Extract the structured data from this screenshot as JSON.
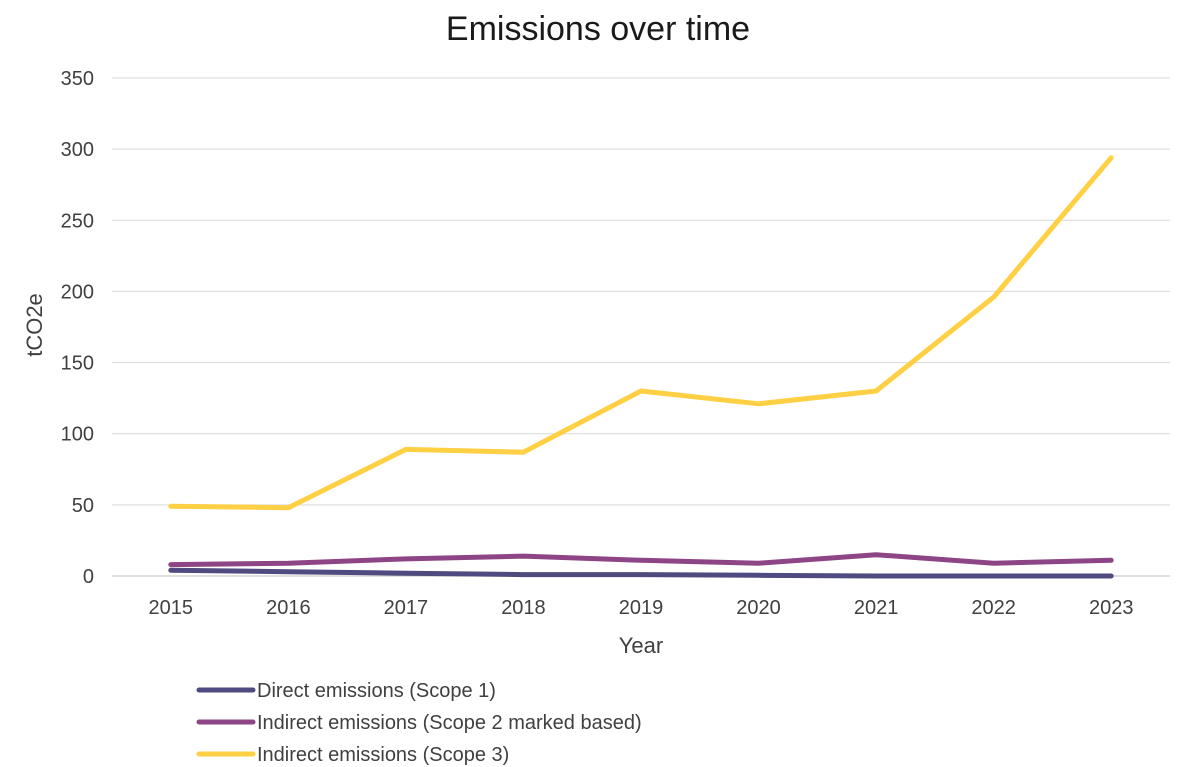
{
  "chart_data": {
    "type": "line",
    "title": "Emissions over time",
    "xlabel": "Year",
    "ylabel": "tCO2e",
    "categories": [
      "2015",
      "2016",
      "2017",
      "2018",
      "2019",
      "2020",
      "2021",
      "2022",
      "2023"
    ],
    "ylim": [
      0,
      350
    ],
    "yticks": [
      0,
      50,
      100,
      150,
      200,
      250,
      300,
      350
    ],
    "grid": true,
    "legend_position": "bottom-left",
    "series": [
      {
        "name": "Direct emissions (Scope 1)",
        "color": "#4f4a7f",
        "values": [
          4,
          3,
          2,
          1,
          1,
          0.5,
          0,
          0,
          0
        ]
      },
      {
        "name": "Indirect emissions (Scope 2 marked based)",
        "color": "#8e4585",
        "values": [
          8,
          9,
          12,
          14,
          11,
          9,
          15,
          9,
          11
        ]
      },
      {
        "name": "Indirect emissions (Scope 3)",
        "color": "#ffcf44",
        "values": [
          49,
          48,
          89,
          87,
          130,
          121,
          130,
          196,
          294
        ]
      }
    ]
  }
}
